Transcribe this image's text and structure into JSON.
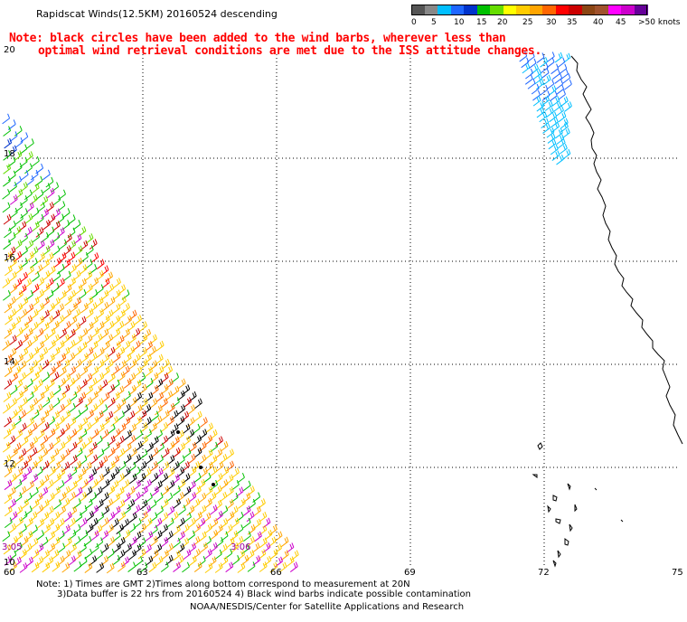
{
  "title": "Rapidscat Winds(12.5KM) 20160524 descending",
  "note": {
    "line1": "Note: black circles have been added to the wind barbs, wherever less than",
    "line2": "optimal wind retrieval conditions are met due to the ISS attitude changes."
  },
  "color_scale": {
    "labels": [
      "0",
      "5",
      "10",
      "15",
      "20",
      "25",
      "30",
      "35",
      "40",
      "45",
      ">50 knots"
    ],
    "colors": [
      "#555555",
      "#888888",
      "#00bfff",
      "#1e66ff",
      "#0033cc",
      "#00c000",
      "#66dd00",
      "#ffff00",
      "#ffcc00",
      "#ffa500",
      "#ff6600",
      "#ff0000",
      "#cc0000",
      "#8b4513",
      "#a0522d",
      "#ff00ff",
      "#cc00cc",
      "#660099"
    ]
  },
  "map": {
    "latitude_labels": [
      "20",
      "18",
      "16",
      "14",
      "12",
      "10"
    ],
    "longitude_labels": [
      "60",
      "63",
      "66",
      "69",
      "72",
      "75"
    ],
    "time_labels": [
      "3:05",
      "3:06"
    ]
  },
  "footer": {
    "line1": "Note: 1) Times are GMT 2)Times along bottom correspond to measurement at 20N",
    "line2": "3)Data buffer is 22 hrs from 20160524 4) Black wind barbs indicate possible contamination",
    "line3": "NOAA/NESDIS/Center for Satellite Applications and Research"
  }
}
